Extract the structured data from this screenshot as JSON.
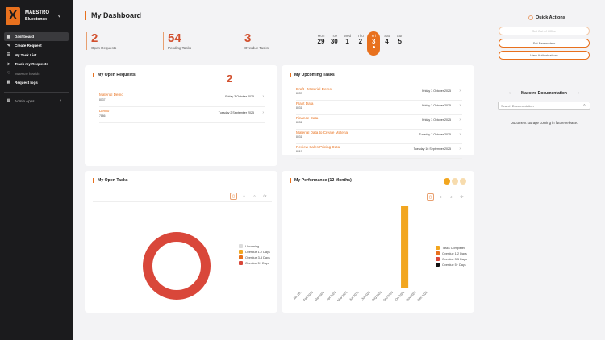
{
  "brand": {
    "logo_letter": "X",
    "name": "MAESTRO",
    "sub": "Bluestonex"
  },
  "sidebar": {
    "items": [
      {
        "label": "Dashboard",
        "icon": "grid-icon",
        "active": true,
        "dim": false
      },
      {
        "label": "Create Request",
        "icon": "plus-icon",
        "active": false,
        "dim": false
      },
      {
        "label": "My Task List",
        "icon": "list-icon",
        "active": false,
        "dim": false
      },
      {
        "label": "Track my Requests",
        "icon": "track-icon",
        "active": false,
        "dim": false
      },
      {
        "label": "Maestro health",
        "icon": "pulse-icon",
        "active": false,
        "dim": true
      },
      {
        "label": "Request logs",
        "icon": "doc-icon",
        "active": false,
        "dim": false
      }
    ],
    "admin_label": "Admin Apps"
  },
  "header": {
    "title": "My Dashboard"
  },
  "stats": [
    {
      "value": "2",
      "label": "Open Requests"
    },
    {
      "value": "54",
      "label": "Pending Tasks"
    },
    {
      "value": "3",
      "label": "Overdue Tasks"
    }
  ],
  "week": [
    {
      "day": "Mon",
      "date": "29",
      "today": false
    },
    {
      "day": "Tue",
      "date": "30",
      "today": false
    },
    {
      "day": "Wed",
      "date": "1",
      "today": false
    },
    {
      "day": "Thu",
      "date": "2",
      "today": false
    },
    {
      "day": "Fri",
      "date": "3",
      "today": true
    },
    {
      "day": "Sat",
      "date": "4",
      "today": false
    },
    {
      "day": "Sun",
      "date": "5",
      "today": false
    }
  ],
  "quick_actions": {
    "title": "Quick Actions",
    "buttons": [
      {
        "label": "Set Out of Office",
        "disabled": true
      },
      {
        "label": "Set Parameters",
        "disabled": false
      },
      {
        "label": "View Authorisations",
        "disabled": false
      }
    ]
  },
  "open_requests": {
    "title": "My Open Requests",
    "count": "2",
    "rows": [
      {
        "title": "Material Demo",
        "sub": "8037",
        "date": "Friday 3 October 2025"
      },
      {
        "title": "Demo",
        "sub": "7886",
        "date": "Tuesday 2 September 2025"
      }
    ]
  },
  "upcoming_tasks": {
    "title": "My Upcoming Tasks",
    "rows": [
      {
        "title": "Draft - Material Demo",
        "sub": "8037",
        "date": "Friday 3 October 2025"
      },
      {
        "title": "Plant Data",
        "sub": "8031",
        "date": "Friday 3 October 2025"
      },
      {
        "title": "Finance Data",
        "sub": "8031",
        "date": "Friday 3 October 2025"
      },
      {
        "title": "Material Data to Create Material",
        "sub": "8031",
        "date": "Tuesday 7 October 2025"
      },
      {
        "title": "Review Sales Pricing Data",
        "sub": "8017",
        "date": "Tuesday 16 September 2025"
      }
    ]
  },
  "open_tasks": {
    "title": "My Open Tasks",
    "legend": [
      {
        "label": "Upcoming",
        "color": "#dcdcdc"
      },
      {
        "label": "Overdue 1-2 Days",
        "color": "#f2a61f"
      },
      {
        "label": "Overdue 3-5 Days",
        "color": "#e8711e"
      },
      {
        "label": "Overdue 5+ Days",
        "color": "#d9473a"
      }
    ]
  },
  "performance": {
    "title": "My Performance (12 Months)",
    "legend": [
      {
        "label": "Tasks Completed",
        "color": "#f2a61f"
      },
      {
        "label": "Overdue 1-2 Days",
        "color": "#e8711e"
      },
      {
        "label": "Overdue 3-5 Days",
        "color": "#d9473a"
      },
      {
        "label": "Overdue 5+ Days",
        "color": "#111111"
      }
    ]
  },
  "chart_data": [
    {
      "type": "pie",
      "categories": [
        "Upcoming",
        "Overdue 1-2 Days",
        "Overdue 3-5 Days",
        "Overdue 5+ Days"
      ],
      "values": [
        0,
        0,
        0,
        1
      ],
      "legend_placement": "right"
    },
    {
      "type": "bar",
      "categories": [
        "Jan 20..",
        "Feb 2025",
        "Mar 2025",
        "Apr 2025",
        "May 2025",
        "Jun 2025",
        "Jul 2025",
        "Aug 2025",
        "Sep 2025",
        "Oct 2025",
        "Nov 2024",
        "Dec 2024"
      ],
      "series": [
        {
          "name": "Tasks Completed",
          "values": [
            0,
            0,
            0,
            0,
            0,
            0,
            0,
            0,
            0,
            1,
            0,
            0
          ]
        },
        {
          "name": "Overdue 1-2 Days",
          "values": [
            0,
            0,
            0,
            0,
            0,
            0,
            0,
            0,
            0,
            0,
            0,
            0
          ]
        },
        {
          "name": "Overdue 3-5 Days",
          "values": [
            0,
            0,
            0,
            0,
            0,
            0,
            0,
            0,
            0,
            0,
            0,
            0
          ]
        },
        {
          "name": "Overdue 5+ Days",
          "values": [
            0,
            0,
            0,
            0,
            0,
            0,
            0,
            0,
            0,
            0,
            0,
            0
          ]
        }
      ],
      "ylim": [
        0,
        1
      ],
      "grid": false,
      "legend_placement": "right"
    }
  ],
  "docs": {
    "title": "Maestro Documentation",
    "search_placeholder": "Search Documentation",
    "note": "Document storage coming in future release."
  }
}
